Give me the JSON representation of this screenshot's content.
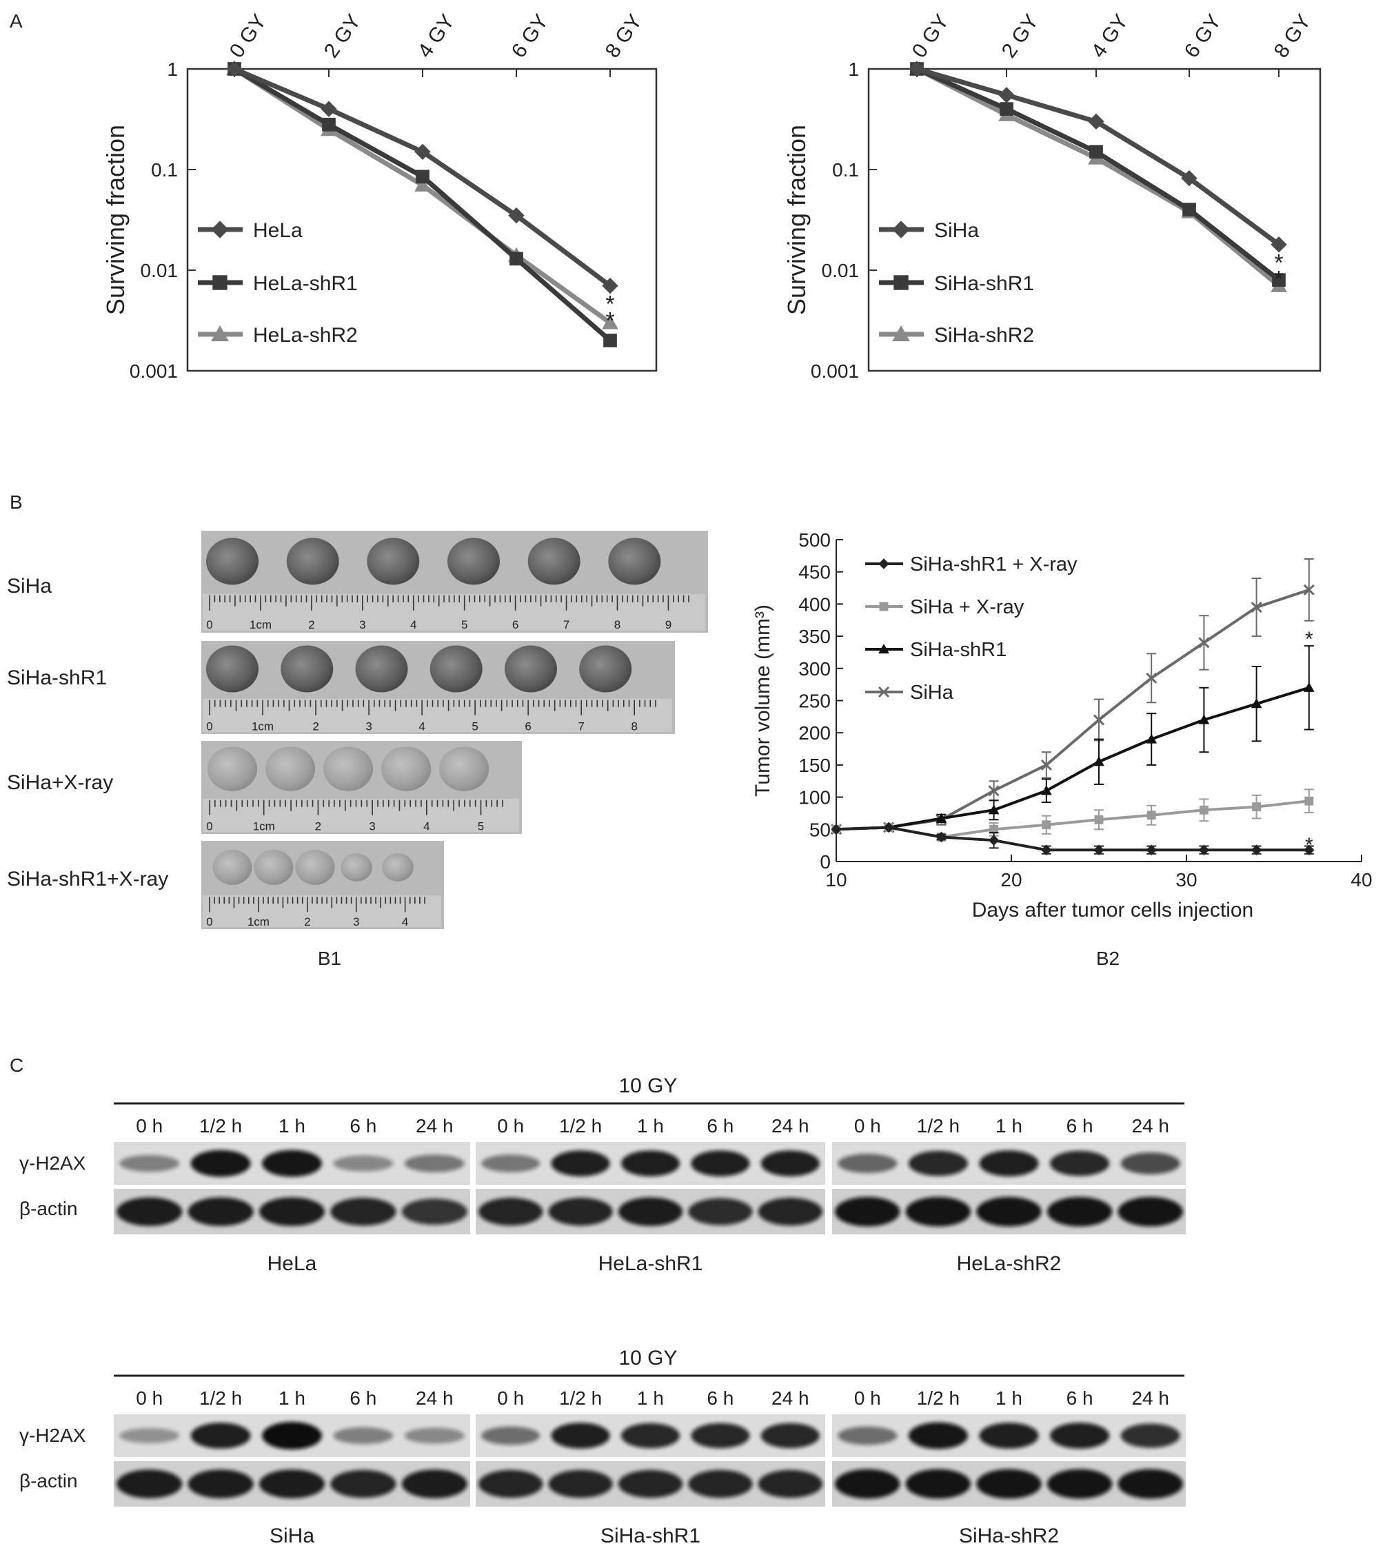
{
  "panels": {
    "A": {
      "label": "A",
      "charts": [
        {
          "type": "line",
          "ylabel": "Surviving fraction",
          "yscale": "log",
          "ylim": [
            0.001,
            1
          ],
          "yticks": [
            "0.001",
            "0.01",
            "0.1",
            "1"
          ],
          "categories": [
            "0 GY",
            "2 GY",
            "4 GY",
            "6 GY",
            "8 GY"
          ],
          "series": [
            {
              "name": "HeLa",
              "marker": "diamond",
              "color": "#4a4a4a",
              "values": [
                1,
                0.4,
                0.15,
                0.035,
                0.007
              ]
            },
            {
              "name": "HeLa-shR1",
              "marker": "square",
              "color": "#3a3a3a",
              "values": [
                1,
                0.28,
                0.085,
                0.013,
                0.002
              ]
            },
            {
              "name": "HeLa-shR2",
              "marker": "triangle",
              "color": "#8a8a8a",
              "values": [
                1,
                0.25,
                0.07,
                0.014,
                0.003
              ]
            }
          ],
          "annotation": "*",
          "legend_position": "left"
        },
        {
          "type": "line",
          "ylabel": "Surviving fraction",
          "yscale": "log",
          "ylim": [
            0.001,
            1
          ],
          "yticks": [
            "0.001",
            "0.01",
            "0.1",
            "1"
          ],
          "categories": [
            "0 GY",
            "2 GY",
            "4 GY",
            "6 GY",
            "8 GY"
          ],
          "series": [
            {
              "name": "SiHa",
              "marker": "diamond",
              "color": "#4a4a4a",
              "values": [
                1,
                0.55,
                0.3,
                0.082,
                0.018
              ]
            },
            {
              "name": "SiHa-shR1",
              "marker": "square",
              "color": "#3a3a3a",
              "values": [
                1,
                0.4,
                0.15,
                0.04,
                0.008
              ]
            },
            {
              "name": "SiHa-shR2",
              "marker": "triangle",
              "color": "#8a8a8a",
              "values": [
                1,
                0.35,
                0.13,
                0.038,
                0.007
              ]
            }
          ],
          "annotation": "*",
          "legend_position": "left"
        }
      ]
    },
    "B": {
      "label": "B",
      "b1": {
        "caption": "B1",
        "rows": [
          {
            "label": "SiHa",
            "tumors": 6,
            "ruler_ticks": [
              "0",
              "1cm",
              "2",
              "3",
              "4",
              "5",
              "6",
              "7",
              "8",
              "9"
            ]
          },
          {
            "label": "SiHa-shR1",
            "tumors": 6,
            "ruler_ticks": [
              "0",
              "1cm",
              "2",
              "3",
              "4",
              "5",
              "6",
              "7",
              "8"
            ]
          },
          {
            "label": "SiHa+X-ray",
            "tumors": 5,
            "ruler_ticks": [
              "0",
              "1cm",
              "2",
              "3",
              "4",
              "5"
            ]
          },
          {
            "label": "SiHa-shR1+X-ray",
            "tumors": 5,
            "ruler_ticks": [
              "0",
              "1cm",
              "2",
              "3",
              "4"
            ]
          }
        ]
      },
      "b2": {
        "caption": "B2",
        "chart_data": {
          "type": "line",
          "xlabel": "Days after tumor cells injection",
          "ylabel": "Tumor volume (mm³)",
          "xlim": [
            10,
            40
          ],
          "ylim": [
            0,
            500
          ],
          "xticks": [
            10,
            20,
            30,
            40
          ],
          "yticks": [
            0,
            50,
            100,
            150,
            200,
            250,
            300,
            350,
            400,
            450,
            500
          ],
          "x": [
            10,
            13,
            16,
            19,
            22,
            25,
            28,
            31,
            34,
            37
          ],
          "series": [
            {
              "name": "SiHa-shR1 + X-ray",
              "marker": "diamond",
              "color": "#222222",
              "values": [
                50,
                53,
                38,
                33,
                18,
                18,
                18,
                18,
                18,
                18
              ],
              "errors": [
                0,
                0,
                4,
                12,
                6,
                6,
                6,
                6,
                6,
                6
              ]
            },
            {
              "name": "SiHa + X-ray",
              "marker": "square",
              "color": "#9a9a9a",
              "values": [
                50,
                53,
                38,
                50,
                57,
                65,
                72,
                80,
                85,
                94
              ],
              "errors": [
                0,
                0,
                4,
                10,
                14,
                15,
                15,
                17,
                18,
                18
              ]
            },
            {
              "name": "SiHa-shR1",
              "marker": "triangle",
              "color": "#111111",
              "values": [
                50,
                53,
                67,
                80,
                110,
                155,
                190,
                220,
                245,
                270
              ],
              "errors": [
                0,
                0,
                6,
                15,
                18,
                35,
                40,
                50,
                58,
                65
              ]
            },
            {
              "name": "SiHa",
              "marker": "x",
              "color": "#6a6a6a",
              "values": [
                50,
                53,
                65,
                110,
                150,
                220,
                285,
                340,
                395,
                422
              ],
              "errors": [
                0,
                0,
                8,
                15,
                20,
                32,
                38,
                42,
                45,
                48
              ]
            }
          ],
          "annotations": [
            "*",
            "*"
          ],
          "legend_position": "top-left"
        }
      }
    },
    "C": {
      "label": "C",
      "blots": [
        {
          "dose": "10 GY",
          "row_labels": [
            "γ-H2AX",
            "β-actin"
          ],
          "groups": [
            {
              "name": "HeLa",
              "times": [
                "0 h",
                "1/2 h",
                "1 h",
                "6 h",
                "24 h"
              ],
              "h2ax": [
                0.35,
                0.95,
                0.95,
                0.3,
                0.4
              ],
              "actin": [
                0.9,
                0.9,
                0.9,
                0.85,
                0.75
              ]
            },
            {
              "name": "HeLa-shR1",
              "times": [
                "0 h",
                "1/2 h",
                "1 h",
                "6 h",
                "24 h"
              ],
              "h2ax": [
                0.4,
                0.9,
                0.9,
                0.9,
                0.9
              ],
              "actin": [
                0.85,
                0.85,
                0.9,
                0.8,
                0.85
              ]
            },
            {
              "name": "HeLa-shR2",
              "times": [
                "0 h",
                "1/2 h",
                "1 h",
                "6 h",
                "24 h"
              ],
              "h2ax": [
                0.5,
                0.85,
                0.9,
                0.85,
                0.65
              ],
              "actin": [
                0.95,
                0.95,
                0.95,
                0.95,
                0.95
              ]
            }
          ]
        },
        {
          "dose": "10 GY",
          "row_labels": [
            "γ-H2AX",
            "β-actin"
          ],
          "groups": [
            {
              "name": "SiHa",
              "times": [
                "0 h",
                "1/2 h",
                "1 h",
                "6 h",
                "24 h"
              ],
              "h2ax": [
                0.25,
                0.9,
                1.0,
                0.35,
                0.3
              ],
              "actin": [
                0.9,
                0.9,
                0.9,
                0.85,
                0.9
              ]
            },
            {
              "name": "SiHa-shR1",
              "times": [
                "0 h",
                "1/2 h",
                "1 h",
                "6 h",
                "24 h"
              ],
              "h2ax": [
                0.45,
                0.9,
                0.85,
                0.85,
                0.85
              ],
              "actin": [
                0.85,
                0.85,
                0.85,
                0.85,
                0.85
              ]
            },
            {
              "name": "SiHa-shR2",
              "times": [
                "0 h",
                "1/2 h",
                "1 h",
                "6 h",
                "24 h"
              ],
              "h2ax": [
                0.45,
                0.95,
                0.9,
                0.9,
                0.8
              ],
              "actin": [
                0.95,
                0.95,
                0.95,
                0.95,
                0.95
              ]
            }
          ]
        }
      ]
    }
  }
}
